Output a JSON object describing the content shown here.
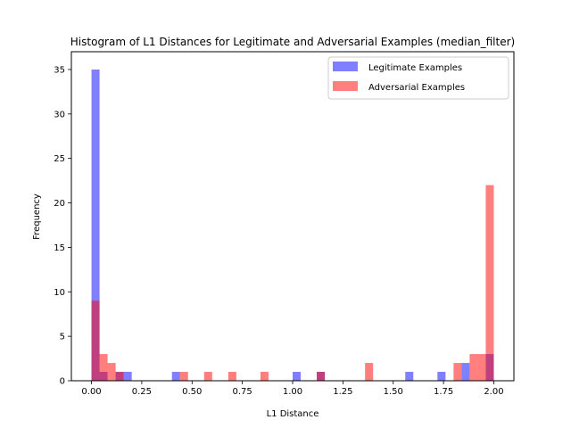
{
  "chart_data": {
    "type": "bar",
    "title": "Histogram of L1 Distances for Legitimate and Adversarial Examples (median_filter)",
    "xlabel": "L1 Distance",
    "ylabel": "Frequency",
    "xlim": [
      -0.1,
      2.1
    ],
    "ylim": [
      0,
      37
    ],
    "xticks": [
      0.0,
      0.25,
      0.5,
      0.75,
      1.0,
      1.25,
      1.5,
      1.75,
      2.0
    ],
    "xtick_labels": [
      "0.00",
      "0.25",
      "0.50",
      "0.75",
      "1.00",
      "1.25",
      "1.50",
      "1.75",
      "2.00"
    ],
    "yticks": [
      0,
      5,
      10,
      15,
      20,
      25,
      30,
      35
    ],
    "ytick_labels": [
      "0",
      "5",
      "10",
      "15",
      "20",
      "25",
      "30",
      "35"
    ],
    "bin_width": 0.04,
    "grid": false,
    "legend_position": "top-right",
    "series": [
      {
        "name": "Legitimate Examples",
        "color": "#0000ff",
        "alpha": 0.5,
        "bins": [
          {
            "x": 0.0,
            "count": 35
          },
          {
            "x": 0.04,
            "count": 1
          },
          {
            "x": 0.12,
            "count": 1
          },
          {
            "x": 0.16,
            "count": 1
          },
          {
            "x": 0.4,
            "count": 1
          },
          {
            "x": 1.0,
            "count": 1
          },
          {
            "x": 1.12,
            "count": 1
          },
          {
            "x": 1.56,
            "count": 1
          },
          {
            "x": 1.72,
            "count": 1
          },
          {
            "x": 1.84,
            "count": 2
          },
          {
            "x": 1.96,
            "count": 3
          }
        ]
      },
      {
        "name": "Adversarial Examples",
        "color": "#ff0000",
        "alpha": 0.5,
        "bins": [
          {
            "x": 0.0,
            "count": 9
          },
          {
            "x": 0.04,
            "count": 3
          },
          {
            "x": 0.08,
            "count": 2
          },
          {
            "x": 0.12,
            "count": 1
          },
          {
            "x": 0.44,
            "count": 1
          },
          {
            "x": 0.56,
            "count": 1
          },
          {
            "x": 0.68,
            "count": 1
          },
          {
            "x": 0.84,
            "count": 1
          },
          {
            "x": 1.12,
            "count": 1
          },
          {
            "x": 1.36,
            "count": 2
          },
          {
            "x": 1.8,
            "count": 2
          },
          {
            "x": 1.88,
            "count": 3
          },
          {
            "x": 1.92,
            "count": 3
          },
          {
            "x": 1.96,
            "count": 22
          }
        ]
      }
    ]
  }
}
